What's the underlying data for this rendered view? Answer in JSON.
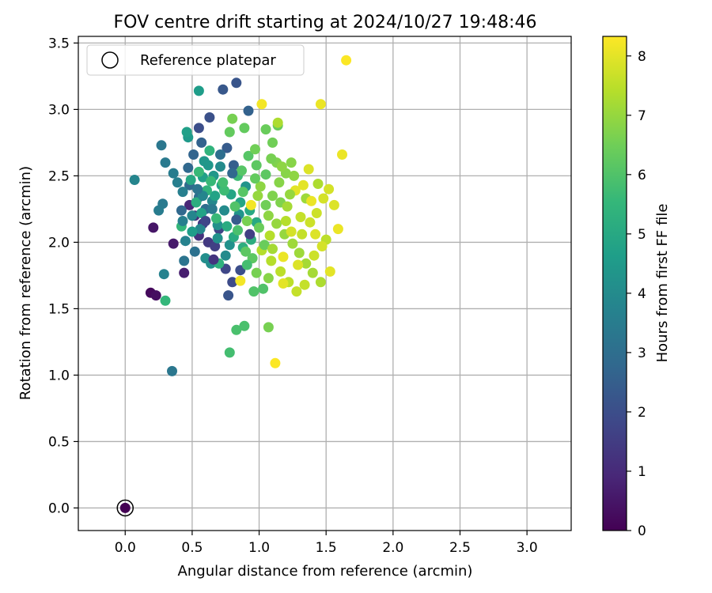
{
  "chart_data": {
    "type": "scatter",
    "title": "FOV centre drift starting at 2024/10/27 19:48:46",
    "xlabel": "Angular distance from reference (arcmin)",
    "ylabel": "Rotation from reference (arcmin)",
    "xlim": [
      -0.35,
      3.33
    ],
    "ylim": [
      -0.17,
      3.55
    ],
    "xticks": [
      "0.0",
      "0.5",
      "1.0",
      "1.5",
      "2.0",
      "2.5",
      "3.0"
    ],
    "yticks": [
      "0.0",
      "0.5",
      "1.0",
      "1.5",
      "2.0",
      "2.5",
      "3.0",
      "3.5"
    ],
    "grid": true,
    "legend": {
      "placement": "top-left",
      "entries": [
        "Reference platepar"
      ]
    },
    "reference_point": {
      "x": 0.0,
      "y": 0.0,
      "hours": 0
    },
    "colorbar": {
      "label": "Hours from first FF file",
      "range": [
        0,
        8.33
      ],
      "ticks": [
        "0",
        "1",
        "2",
        "3",
        "4",
        "5",
        "6",
        "7",
        "8"
      ],
      "colormap": [
        "#440154",
        "#482878",
        "#3e4989",
        "#31688e",
        "#26828e",
        "#1f9e89",
        "#35b779",
        "#6ece58",
        "#b5de2b",
        "#fde725"
      ]
    },
    "points": [
      [
        0.0,
        0.0,
        0.0
      ],
      [
        0.19,
        1.62,
        0.2
      ],
      [
        0.23,
        1.6,
        0.3
      ],
      [
        0.21,
        2.11,
        0.5
      ],
      [
        0.36,
        1.99,
        0.6
      ],
      [
        0.44,
        1.77,
        0.7
      ],
      [
        0.48,
        2.28,
        0.9
      ],
      [
        0.52,
        2.2,
        1.1
      ],
      [
        0.55,
        2.05,
        1.2
      ],
      [
        0.62,
        2.0,
        1.4
      ],
      [
        0.58,
        2.14,
        1.5
      ],
      [
        0.67,
        1.97,
        1.6
      ],
      [
        0.7,
        2.1,
        1.7
      ],
      [
        0.75,
        1.8,
        1.8
      ],
      [
        0.8,
        1.7,
        1.9
      ],
      [
        0.55,
        2.86,
        2.0
      ],
      [
        0.63,
        2.94,
        2.1
      ],
      [
        0.73,
        3.15,
        2.3
      ],
      [
        0.83,
        3.2,
        2.2
      ],
      [
        0.76,
        2.71,
        2.4
      ],
      [
        0.81,
        2.58,
        2.5
      ],
      [
        0.57,
        2.75,
        2.6
      ],
      [
        0.51,
        2.66,
        2.7
      ],
      [
        0.47,
        2.56,
        2.8
      ],
      [
        0.42,
        2.24,
        2.8
      ],
      [
        0.48,
        2.43,
        2.9
      ],
      [
        0.55,
        2.34,
        3.0
      ],
      [
        0.6,
        2.25,
        3.0
      ],
      [
        0.52,
        1.93,
        3.1
      ],
      [
        0.44,
        1.86,
        3.2
      ],
      [
        0.35,
        1.03,
        3.3
      ],
      [
        0.27,
        2.73,
        3.3
      ],
      [
        0.3,
        2.6,
        3.4
      ],
      [
        0.28,
        2.29,
        3.4
      ],
      [
        0.25,
        2.24,
        3.5
      ],
      [
        0.36,
        2.52,
        3.5
      ],
      [
        0.39,
        2.45,
        3.6
      ],
      [
        0.43,
        2.38,
        3.6
      ],
      [
        0.45,
        2.01,
        3.7
      ],
      [
        0.29,
        1.76,
        3.7
      ],
      [
        0.07,
        2.47,
        3.8
      ],
      [
        0.5,
        2.2,
        3.8
      ],
      [
        0.56,
        2.1,
        3.9
      ],
      [
        0.65,
        2.31,
        3.9
      ],
      [
        0.71,
        2.57,
        4.0
      ],
      [
        0.74,
        2.24,
        4.0
      ],
      [
        0.6,
        1.88,
        4.1
      ],
      [
        0.64,
        1.84,
        4.1
      ],
      [
        0.69,
        2.13,
        4.2
      ],
      [
        0.78,
        1.98,
        4.2
      ],
      [
        0.85,
        2.21,
        4.3
      ],
      [
        0.9,
        2.42,
        4.3
      ],
      [
        0.66,
        2.5,
        4.4
      ],
      [
        0.59,
        2.61,
        4.4
      ],
      [
        0.47,
        2.79,
        4.5
      ],
      [
        0.55,
        3.14,
        4.6
      ],
      [
        0.46,
        2.83,
        4.7
      ],
      [
        0.58,
        2.49,
        4.7
      ],
      [
        0.67,
        2.35,
        4.8
      ],
      [
        0.72,
        2.43,
        4.8
      ],
      [
        0.79,
        2.36,
        4.9
      ],
      [
        0.86,
        2.3,
        4.9
      ],
      [
        0.93,
        2.24,
        5.0
      ],
      [
        0.98,
        2.15,
        5.0
      ],
      [
        0.76,
        2.12,
        5.1
      ],
      [
        0.81,
        2.04,
        5.1
      ],
      [
        0.88,
        1.96,
        5.2
      ],
      [
        0.94,
        2.02,
        5.2
      ],
      [
        0.7,
        1.84,
        5.3
      ],
      [
        0.63,
        2.69,
        5.4
      ],
      [
        0.42,
        2.12,
        5.5
      ],
      [
        0.3,
        1.56,
        5.5
      ],
      [
        0.55,
        2.53,
        5.6
      ],
      [
        0.64,
        2.46,
        5.6
      ],
      [
        0.74,
        2.39,
        5.7
      ],
      [
        0.84,
        2.5,
        5.7
      ],
      [
        0.78,
        1.17,
        5.8
      ],
      [
        0.83,
        1.34,
        5.9
      ],
      [
        0.89,
        1.37,
        5.9
      ],
      [
        0.96,
        1.63,
        6.0
      ],
      [
        1.03,
        1.65,
        6.0
      ],
      [
        0.87,
        2.54,
        6.1
      ],
      [
        0.92,
        2.65,
        6.1
      ],
      [
        0.98,
        2.58,
        6.2
      ],
      [
        1.05,
        2.51,
        6.2
      ],
      [
        0.78,
        2.83,
        6.3
      ],
      [
        0.89,
        2.86,
        6.3
      ],
      [
        1.05,
        2.85,
        6.4
      ],
      [
        1.14,
        2.88,
        6.4
      ],
      [
        0.97,
        2.7,
        6.5
      ],
      [
        1.1,
        2.75,
        6.5
      ],
      [
        1.07,
        1.36,
        6.6
      ],
      [
        0.8,
        2.93,
        6.6
      ],
      [
        1.1,
        2.35,
        6.7
      ],
      [
        1.16,
        2.3,
        6.7
      ],
      [
        1.2,
        2.52,
        6.8
      ],
      [
        1.24,
        2.6,
        6.8
      ],
      [
        1.01,
        2.42,
        6.9
      ],
      [
        1.07,
        2.2,
        6.9
      ],
      [
        1.13,
        2.14,
        7.0
      ],
      [
        1.19,
        2.06,
        7.0
      ],
      [
        1.25,
        1.99,
        7.1
      ],
      [
        1.3,
        1.92,
        7.1
      ],
      [
        1.35,
        1.84,
        7.2
      ],
      [
        1.4,
        1.77,
        7.2
      ],
      [
        1.46,
        1.7,
        7.3
      ],
      [
        1.14,
        2.9,
        7.3
      ],
      [
        1.02,
        1.94,
        7.4
      ],
      [
        1.09,
        1.86,
        7.4
      ],
      [
        1.16,
        1.78,
        7.5
      ],
      [
        1.22,
        1.7,
        7.5
      ],
      [
        1.28,
        1.63,
        7.6
      ],
      [
        1.34,
        1.68,
        7.6
      ],
      [
        1.38,
        2.15,
        7.7
      ],
      [
        1.43,
        2.22,
        7.7
      ],
      [
        1.48,
        2.33,
        7.8
      ],
      [
        1.52,
        2.4,
        7.8
      ],
      [
        1.56,
        2.28,
        7.9
      ],
      [
        1.42,
        2.06,
        7.9
      ],
      [
        1.33,
        2.43,
        8.0
      ],
      [
        1.27,
        2.39,
        8.0
      ],
      [
        1.59,
        2.1,
        8.1
      ],
      [
        1.62,
        2.66,
        8.1
      ],
      [
        1.46,
        3.04,
        8.1
      ],
      [
        1.02,
        3.04,
        8.2
      ],
      [
        1.65,
        3.37,
        8.3
      ],
      [
        1.12,
        1.09,
        8.3
      ],
      [
        0.86,
        1.71,
        8.2
      ],
      [
        0.94,
        2.28,
        8.2
      ],
      [
        1.18,
        1.89,
        8.1
      ],
      [
        1.53,
        1.78,
        8.0
      ],
      [
        1.37,
        2.55,
        7.9
      ],
      [
        1.24,
        2.08,
        7.8
      ],
      [
        1.31,
        2.19,
        7.6
      ],
      [
        1.08,
        2.05,
        7.4
      ],
      [
        1.21,
        2.27,
        7.2
      ],
      [
        0.99,
        2.35,
        7.0
      ],
      [
        1.15,
        2.45,
        6.8
      ],
      [
        0.91,
        2.16,
        6.6
      ],
      [
        1.04,
        1.98,
        6.4
      ],
      [
        0.95,
        1.88,
        6.2
      ],
      [
        0.82,
        2.27,
        6.0
      ],
      [
        0.73,
        2.45,
        5.8
      ],
      [
        0.68,
        2.18,
        5.6
      ],
      [
        0.61,
        2.39,
        5.4
      ],
      [
        0.53,
        2.3,
        5.2
      ],
      [
        0.49,
        2.47,
        5.0
      ],
      [
        0.57,
        2.22,
        4.8
      ],
      [
        0.5,
        2.08,
        4.6
      ],
      [
        0.62,
        2.58,
        4.4
      ],
      [
        0.69,
        2.03,
        4.2
      ],
      [
        0.75,
        1.9,
        4.0
      ],
      [
        0.58,
        2.35,
        3.8
      ],
      [
        0.43,
        2.16,
        3.6
      ],
      [
        0.65,
        2.25,
        3.4
      ],
      [
        0.54,
        2.4,
        3.2
      ],
      [
        0.71,
        2.66,
        3.0
      ],
      [
        0.8,
        2.52,
        2.8
      ],
      [
        0.92,
        2.99,
        2.6
      ],
      [
        0.83,
        2.17,
        2.4
      ],
      [
        0.77,
        1.6,
        2.2
      ],
      [
        0.86,
        1.79,
        2.0
      ],
      [
        0.6,
        2.16,
        1.8
      ],
      [
        0.93,
        2.06,
        1.6
      ],
      [
        0.66,
        1.87,
        1.3
      ],
      [
        1.13,
        2.6,
        6.7
      ],
      [
        1.26,
        2.5,
        6.9
      ],
      [
        1.35,
        2.33,
        7.1
      ],
      [
        1.44,
        2.44,
        7.3
      ],
      [
        1.5,
        2.02,
        7.5
      ],
      [
        1.41,
        1.9,
        7.7
      ],
      [
        1.29,
        1.83,
        7.9
      ],
      [
        1.18,
        1.69,
        8.0
      ],
      [
        1.1,
        1.95,
        7.2
      ],
      [
        1.05,
        2.28,
        6.5
      ],
      [
        0.97,
        2.48,
        6.3
      ],
      [
        0.88,
        2.38,
        6.1
      ],
      [
        0.84,
        2.09,
        5.9
      ],
      [
        0.91,
        1.83,
        5.8
      ],
      [
        0.98,
        1.77,
        6.6
      ],
      [
        1.07,
        1.73,
        6.8
      ],
      [
        1.2,
        2.16,
        7.4
      ],
      [
        1.32,
        2.06,
        7.6
      ],
      [
        1.47,
        1.97,
        7.8
      ],
      [
        1.39,
        2.31,
        8.1
      ],
      [
        1.23,
        2.36,
        7.0
      ],
      [
        1.17,
        2.57,
        6.9
      ],
      [
        1.09,
        2.63,
        6.6
      ],
      [
        1.0,
        2.11,
        6.4
      ],
      [
        0.9,
        1.93,
        6.2
      ]
    ]
  }
}
